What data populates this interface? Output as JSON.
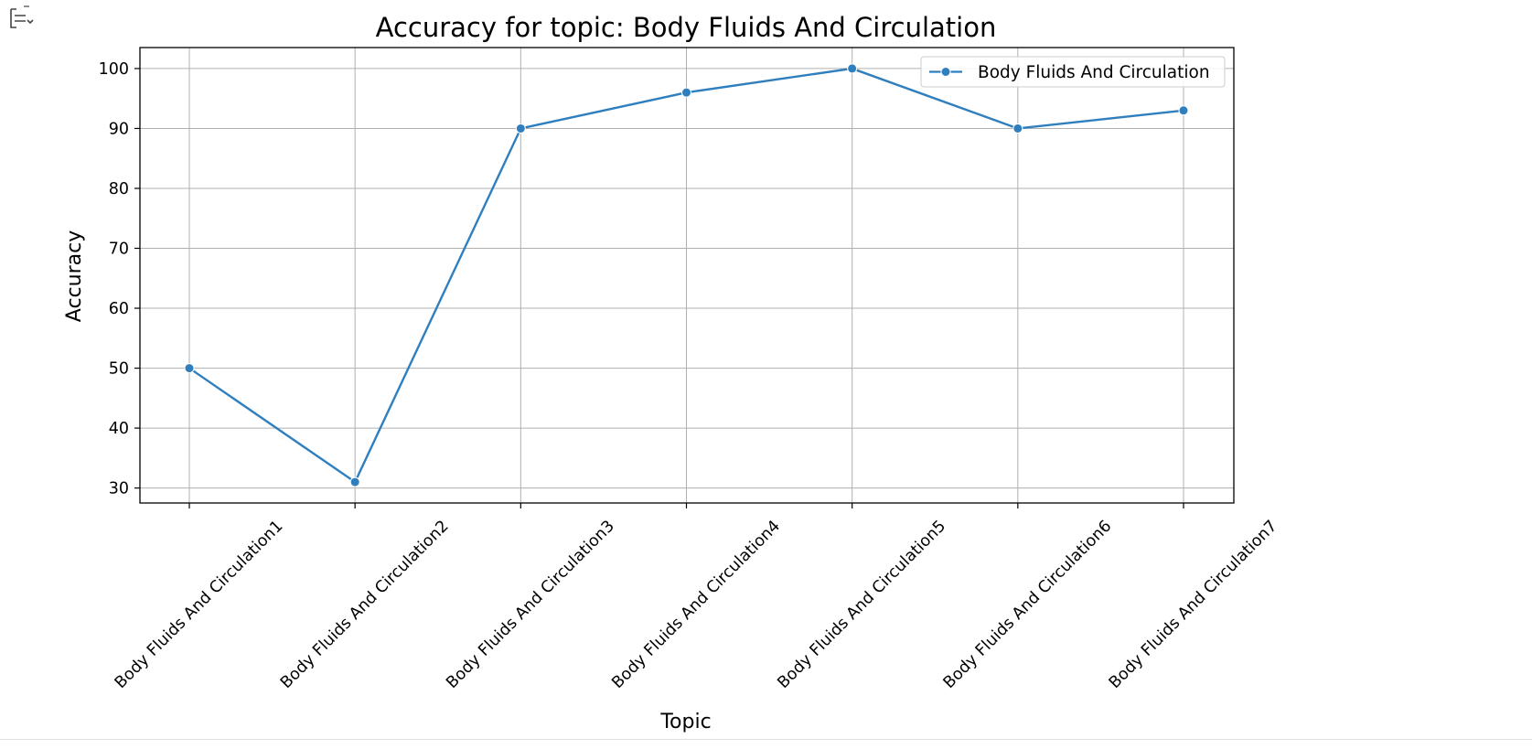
{
  "output_toggle": {
    "icon": "output-toggle-icon"
  },
  "chart_data": {
    "type": "line",
    "title": "Accuracy for topic: Body Fluids And Circulation",
    "xlabel": "Topic",
    "ylabel": "Accuracy",
    "categories": [
      "Body Fluids And Circulation1",
      "Body Fluids And Circulation2",
      "Body Fluids And Circulation3",
      "Body Fluids And Circulation4",
      "Body Fluids And Circulation5",
      "Body Fluids And Circulation6",
      "Body Fluids And Circulation7"
    ],
    "series": [
      {
        "name": "Body Fluids And Circulation",
        "values": [
          50,
          31,
          90,
          96,
          100,
          90,
          93
        ],
        "color": "#2f7fbf"
      }
    ],
    "ylim": [
      27.5,
      103.5
    ],
    "yticks": [
      30,
      40,
      50,
      60,
      70,
      80,
      90,
      100
    ],
    "grid": true,
    "legend": "top-right",
    "marker": "circle"
  }
}
